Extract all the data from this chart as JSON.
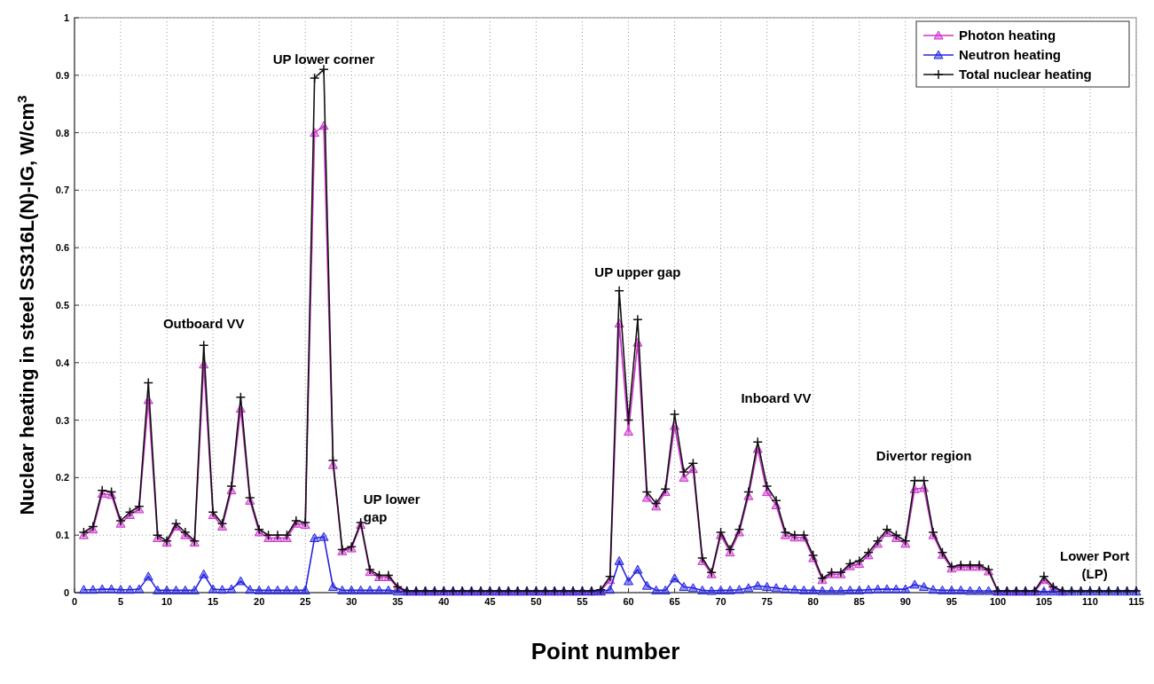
{
  "chart_data": {
    "type": "line",
    "xlabel": "Point number",
    "ylabel": "Nuclear heating in steel SS316L(N)-IG, W/cm$^{3}$",
    "x": [
      1,
      2,
      3,
      4,
      5,
      6,
      7,
      8,
      9,
      10,
      11,
      12,
      13,
      14,
      15,
      16,
      17,
      18,
      19,
      20,
      21,
      22,
      23,
      24,
      25,
      26,
      27,
      28,
      29,
      30,
      31,
      32,
      33,
      34,
      35,
      36,
      37,
      38,
      39,
      40,
      41,
      42,
      43,
      44,
      45,
      46,
      47,
      48,
      49,
      50,
      51,
      52,
      53,
      54,
      55,
      56,
      57,
      58,
      59,
      60,
      61,
      62,
      63,
      64,
      65,
      66,
      67,
      68,
      69,
      70,
      71,
      72,
      73,
      74,
      75,
      76,
      77,
      78,
      79,
      80,
      81,
      82,
      83,
      84,
      85,
      86,
      87,
      88,
      89,
      90,
      91,
      92,
      93,
      94,
      95,
      96,
      97,
      98,
      99,
      100,
      101,
      102,
      103,
      104,
      105,
      106,
      107,
      108,
      109,
      110,
      111,
      112,
      113,
      114,
      115
    ],
    "series": [
      {
        "name": "Photon heating",
        "color": "#cc33cc",
        "marker": "triangle",
        "values": [
          0.1,
          0.11,
          0.172,
          0.17,
          0.12,
          0.135,
          0.145,
          0.335,
          0.095,
          0.087,
          0.115,
          0.1,
          0.087,
          0.397,
          0.135,
          0.115,
          0.178,
          0.32,
          0.16,
          0.105,
          0.095,
          0.095,
          0.095,
          0.12,
          0.118,
          0.8,
          0.812,
          0.222,
          0.072,
          0.077,
          0.118,
          0.036,
          0.027,
          0.027,
          0.008,
          0.002,
          0.002,
          0.002,
          0.002,
          0.002,
          0.002,
          0.002,
          0.002,
          0.002,
          0.002,
          0.002,
          0.002,
          0.002,
          0.002,
          0.002,
          0.002,
          0.002,
          0.002,
          0.002,
          0.002,
          0.002,
          0.003,
          0.022,
          0.468,
          0.28,
          0.435,
          0.165,
          0.15,
          0.175,
          0.29,
          0.2,
          0.215,
          0.055,
          0.032,
          0.1,
          0.07,
          0.105,
          0.168,
          0.25,
          0.175,
          0.152,
          0.1,
          0.096,
          0.096,
          0.06,
          0.022,
          0.032,
          0.032,
          0.046,
          0.05,
          0.065,
          0.085,
          0.104,
          0.095,
          0.085,
          0.18,
          0.182,
          0.1,
          0.066,
          0.042,
          0.045,
          0.045,
          0.045,
          0.037,
          0.002,
          0.002,
          0.002,
          0.002,
          0.002,
          0.022,
          0.008,
          0.002,
          null,
          null,
          null,
          null,
          null,
          null,
          null,
          null
        ]
      },
      {
        "name": "Neutron heating",
        "color": "#2424e0",
        "marker": "triangle",
        "values": [
          0.005,
          0.005,
          0.006,
          0.006,
          0.005,
          0.005,
          0.006,
          0.028,
          0.004,
          0.004,
          0.004,
          0.004,
          0.004,
          0.032,
          0.006,
          0.005,
          0.006,
          0.02,
          0.005,
          0.004,
          0.004,
          0.004,
          0.004,
          0.004,
          0.004,
          0.095,
          0.097,
          0.01,
          0.004,
          0.004,
          0.004,
          0.004,
          0.004,
          0.004,
          0.002,
          0.002,
          0.002,
          0.002,
          0.002,
          0.002,
          0.002,
          0.002,
          0.002,
          0.002,
          0.002,
          0.002,
          0.002,
          0.002,
          0.002,
          0.002,
          0.002,
          0.002,
          0.002,
          0.002,
          0.002,
          0.002,
          0.002,
          0.005,
          0.055,
          0.02,
          0.04,
          0.012,
          0.004,
          0.004,
          0.025,
          0.01,
          0.008,
          0.004,
          0.003,
          0.004,
          0.004,
          0.005,
          0.008,
          0.012,
          0.01,
          0.008,
          0.006,
          0.005,
          0.004,
          0.004,
          0.003,
          0.003,
          0.003,
          0.004,
          0.004,
          0.005,
          0.006,
          0.006,
          0.006,
          0.006,
          0.014,
          0.01,
          0.005,
          0.004,
          0.004,
          0.004,
          0.003,
          0.003,
          0.003,
          0.002,
          0.002,
          0.002,
          0.002,
          0.002,
          0.002,
          0.002,
          0.002,
          0.002,
          0.002,
          0.002,
          0.002,
          0.002,
          0.002,
          0.002,
          0.002
        ]
      },
      {
        "name": "Total nuclear heating",
        "color": "#111111",
        "marker": "cross",
        "values": [
          0.105,
          0.115,
          0.178,
          0.175,
          0.125,
          0.14,
          0.15,
          0.365,
          0.1,
          0.09,
          0.12,
          0.105,
          0.09,
          0.43,
          0.14,
          0.12,
          0.185,
          0.34,
          0.165,
          0.11,
          0.1,
          0.1,
          0.1,
          0.125,
          0.122,
          0.895,
          0.91,
          0.23,
          0.075,
          0.08,
          0.122,
          0.04,
          0.03,
          0.03,
          0.01,
          0.003,
          0.003,
          0.003,
          0.003,
          0.003,
          0.003,
          0.003,
          0.003,
          0.003,
          0.003,
          0.003,
          0.003,
          0.003,
          0.003,
          0.003,
          0.003,
          0.003,
          0.003,
          0.003,
          0.003,
          0.003,
          0.005,
          0.028,
          0.525,
          0.3,
          0.475,
          0.175,
          0.155,
          0.18,
          0.31,
          0.21,
          0.225,
          0.06,
          0.035,
          0.105,
          0.075,
          0.11,
          0.175,
          0.262,
          0.185,
          0.16,
          0.105,
          0.1,
          0.1,
          0.065,
          0.025,
          0.035,
          0.035,
          0.05,
          0.055,
          0.07,
          0.09,
          0.11,
          0.1,
          0.09,
          0.195,
          0.195,
          0.105,
          0.07,
          0.045,
          0.048,
          0.048,
          0.048,
          0.04,
          0.003,
          0.003,
          0.003,
          0.003,
          0.003,
          0.028,
          0.01,
          0.003,
          0.003,
          0.003,
          0.003,
          0.003,
          0.003,
          0.003,
          0.003,
          0.003
        ]
      }
    ],
    "xlim": [
      0,
      115
    ],
    "xticks": [
      0,
      5,
      10,
      15,
      20,
      25,
      30,
      35,
      40,
      45,
      50,
      55,
      60,
      65,
      70,
      75,
      80,
      85,
      90,
      95,
      100,
      105,
      110,
      115
    ],
    "ylim": [
      0,
      1
    ],
    "yticks": [
      0,
      0.1,
      0.2,
      0.3,
      0.4,
      0.5,
      0.6,
      0.7,
      0.8,
      0.9,
      1
    ],
    "grid": true,
    "legend": "top right",
    "line_style": "solid",
    "annotations": [
      "Outboard VV",
      "UP lower corner",
      "UP lower gap",
      "UP upper gap",
      "Inboard VV",
      "Divertor region",
      "Lower Port (LP)"
    ]
  }
}
